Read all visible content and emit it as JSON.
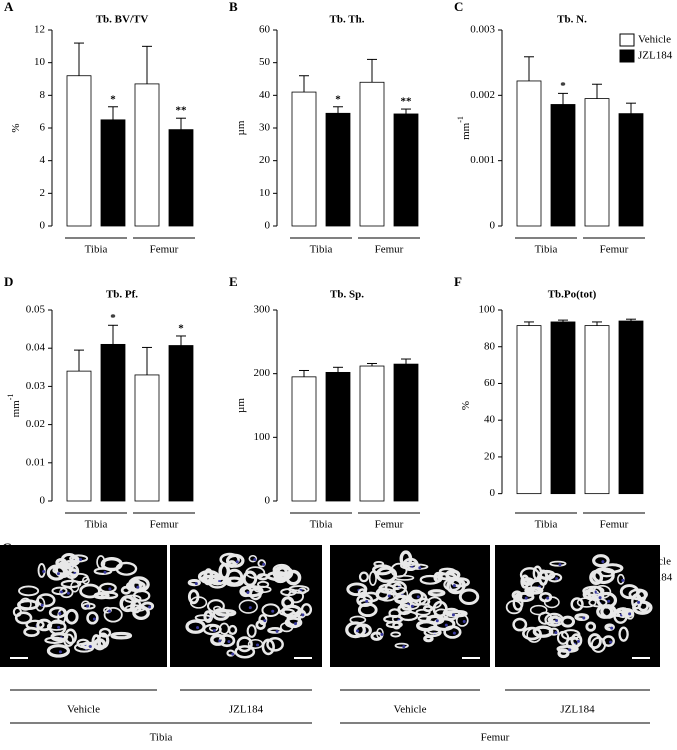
{
  "chart_data": [
    {
      "type": "bar",
      "panel": "A",
      "title": "Tb. BV/TV",
      "y_label": "%",
      "categories": [
        "Tibia",
        "Femur"
      ],
      "series": [
        {
          "name": "Vehicle",
          "color": "#ffffff",
          "values": [
            9.2,
            8.7
          ],
          "errors": [
            2.0,
            2.3
          ]
        },
        {
          "name": "JZL184",
          "color": "#000000",
          "values": [
            6.5,
            5.9
          ],
          "errors": [
            0.8,
            0.7
          ],
          "significance": [
            "*",
            "**"
          ]
        }
      ],
      "ylim": [
        0,
        12
      ],
      "yticks": [
        0,
        2,
        4,
        6,
        8,
        10,
        12
      ],
      "legend": false
    },
    {
      "type": "bar",
      "panel": "B",
      "title": "Tb. Th.",
      "y_label": "µm",
      "categories": [
        "Tibia",
        "Femur"
      ],
      "series": [
        {
          "name": "Vehicle",
          "color": "#ffffff",
          "values": [
            41,
            44
          ],
          "errors": [
            5,
            7
          ]
        },
        {
          "name": "JZL184",
          "color": "#000000",
          "values": [
            34.5,
            34.3
          ],
          "errors": [
            2,
            1.5
          ],
          "significance": [
            "*",
            "**"
          ]
        }
      ],
      "ylim": [
        0,
        60
      ],
      "yticks": [
        0,
        10,
        20,
        30,
        40,
        50,
        60
      ],
      "legend": false
    },
    {
      "type": "bar",
      "panel": "C",
      "title": "Tb. N.",
      "y_label": "mm",
      "y_label_sup": "-1",
      "categories": [
        "Tibia",
        "Femur"
      ],
      "series": [
        {
          "name": "Vehicle",
          "color": "#ffffff",
          "values": [
            0.00222,
            0.00195
          ],
          "errors": [
            0.00037,
            0.00022
          ]
        },
        {
          "name": "JZL184",
          "color": "#000000",
          "values": [
            0.00186,
            0.00172
          ],
          "errors": [
            0.00017,
            0.00016
          ],
          "significance": [
            "*",
            null
          ]
        }
      ],
      "ylim": [
        0,
        0.003
      ],
      "yticks": [
        0,
        0.001,
        0.002,
        0.003
      ],
      "legend": "upper right"
    },
    {
      "type": "bar",
      "panel": "D",
      "title": "Tb. Pf.",
      "y_label": "mm",
      "y_label_sup": "-1",
      "categories": [
        "Tibia",
        "Femur"
      ],
      "series": [
        {
          "name": "Vehicle",
          "color": "#ffffff",
          "values": [
            0.034,
            0.033
          ],
          "errors": [
            0.0055,
            0.0072
          ]
        },
        {
          "name": "JZL184",
          "color": "#000000",
          "values": [
            0.041,
            0.0407
          ],
          "errors": [
            0.005,
            0.0025
          ],
          "significance": [
            "*",
            "*"
          ]
        }
      ],
      "ylim": [
        0,
        0.05
      ],
      "yticks": [
        0,
        0.01,
        0.02,
        0.03,
        0.04,
        0.05
      ],
      "legend": false
    },
    {
      "type": "bar",
      "panel": "E",
      "title": "Tb. Sp.",
      "y_label": "µm",
      "categories": [
        "Tibia",
        "Femur"
      ],
      "series": [
        {
          "name": "Vehicle",
          "color": "#ffffff",
          "values": [
            195,
            212
          ],
          "errors": [
            10,
            4
          ]
        },
        {
          "name": "JZL184",
          "color": "#000000",
          "values": [
            202,
            215
          ],
          "errors": [
            8,
            8
          ]
        }
      ],
      "ylim": [
        0,
        300
      ],
      "yticks": [
        0,
        100,
        200,
        300
      ],
      "legend": false
    },
    {
      "type": "bar",
      "panel": "F",
      "title": "Tb.Po(tot)",
      "y_label": "%",
      "categories": [
        "Tibia",
        "Femur"
      ],
      "series": [
        {
          "name": "Vehicle",
          "color": "#ffffff",
          "values": [
            91.5,
            91.5
          ],
          "errors": [
            2,
            2
          ]
        },
        {
          "name": "JZL184",
          "color": "#000000",
          "values": [
            93.5,
            94
          ],
          "errors": [
            1,
            1
          ]
        }
      ],
      "ylim": [
        -4,
        100
      ],
      "yticks": [
        0,
        20,
        40,
        60,
        80,
        100
      ],
      "legend": "upper right"
    }
  ],
  "figure_g": {
    "panel": "G",
    "images": [
      "Vehicle",
      "JZL184",
      "Vehicle",
      "JZL184"
    ],
    "groups": [
      "Tibia",
      "Femur"
    ]
  }
}
